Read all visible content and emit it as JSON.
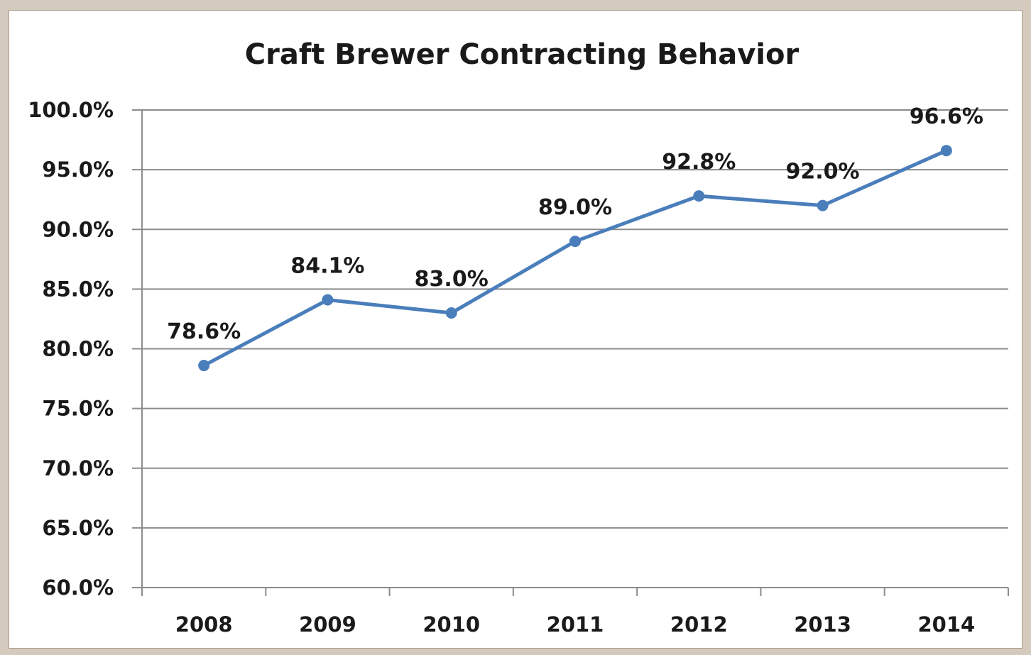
{
  "chart_data": {
    "type": "line",
    "title": "Craft Brewer Contracting Behavior",
    "xlabel": "",
    "ylabel": "",
    "categories": [
      "2008",
      "2009",
      "2010",
      "2011",
      "2012",
      "2013",
      "2014"
    ],
    "series": [
      {
        "values": [
          78.6,
          84.1,
          83.0,
          89.0,
          92.8,
          92.0,
          96.6
        ],
        "labels": [
          "78.6%",
          "84.1%",
          "83.0%",
          "89.0%",
          "92.8%",
          "92.0%",
          "96.6%"
        ],
        "color": "#4a7ebb"
      }
    ],
    "ylim": [
      60,
      100
    ],
    "yticks": [
      60,
      65,
      70,
      75,
      80,
      85,
      90,
      95,
      100
    ],
    "ytick_labels": [
      "60.0%",
      "65.0%",
      "70.0%",
      "75.0%",
      "80.0%",
      "85.0%",
      "90.0%",
      "95.0%",
      "100.0%"
    ],
    "grid": true,
    "legend": "none"
  }
}
